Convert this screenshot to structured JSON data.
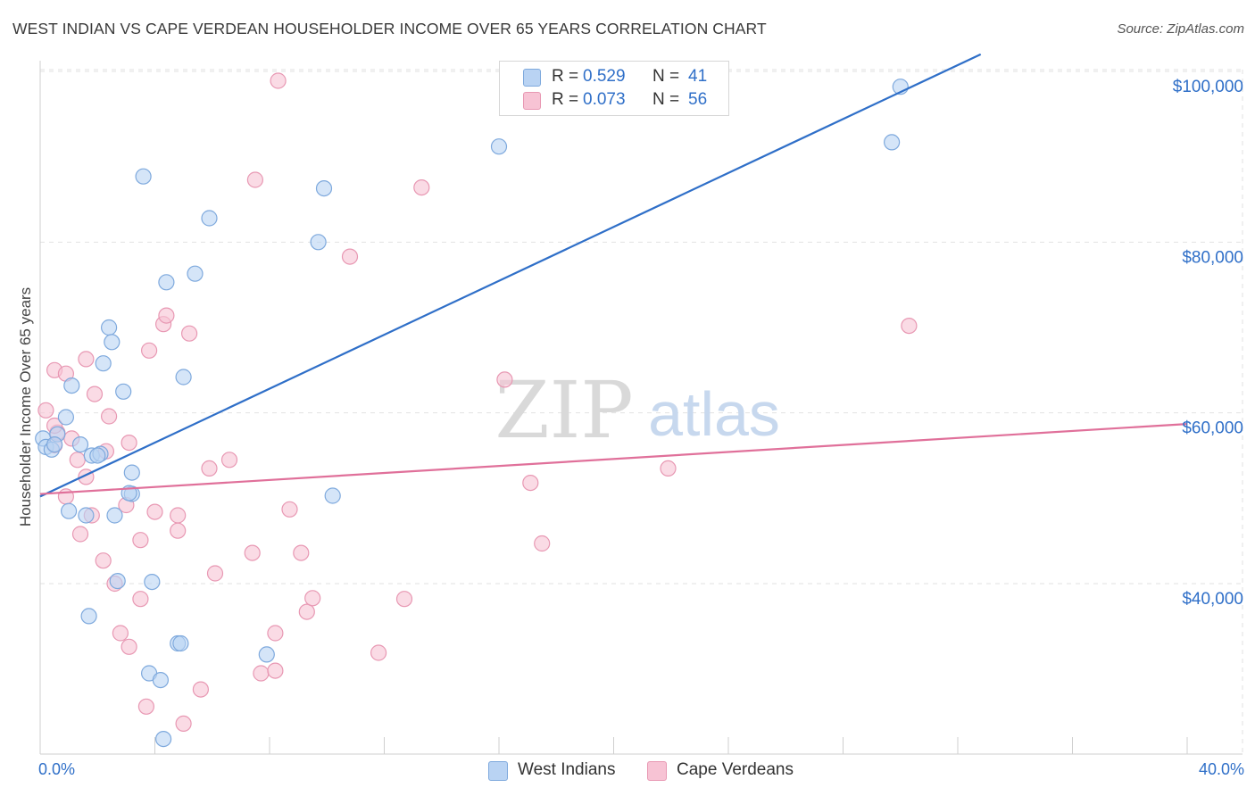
{
  "header": {
    "title": "WEST INDIAN VS CAPE VERDEAN HOUSEHOLDER INCOME OVER 65 YEARS CORRELATION CHART",
    "source": "Source: ZipAtlas.com"
  },
  "watermark": {
    "zip": "ZIP",
    "atlas": "atlas"
  },
  "legend_top": {
    "rows": [
      {
        "r_label": "R =",
        "r_value": "0.529",
        "n_label": "N =",
        "n_value": "41"
      },
      {
        "r_label": "R =",
        "r_value": "0.073",
        "n_label": "N =",
        "n_value": "56"
      }
    ]
  },
  "legend_bottom": {
    "items": [
      "West Indians",
      "Cape Verdeans"
    ]
  },
  "colors": {
    "blue_fill": "#b9d3f3",
    "blue_stroke": "#7ea9dd",
    "blue_line": "#2f6fc8",
    "pink_fill": "#f7c3d4",
    "pink_stroke": "#e898b3",
    "pink_line": "#e0709a",
    "axis_text": "#2f6fc8",
    "grid": "#e2e2e2"
  },
  "chart_data": {
    "type": "scatter",
    "title": "WEST INDIAN VS CAPE VERDEAN HOUSEHOLDER INCOME OVER 65 YEARS CORRELATION CHART",
    "xlabel": "",
    "ylabel": "Householder Income Over 65 years",
    "xlim": [
      0,
      40
    ],
    "ylim": [
      20000,
      102000
    ],
    "x_tick_labels": [
      "0.0%",
      "40.0%"
    ],
    "y_ticks": [
      {
        "value": 40000,
        "label": "$40,000"
      },
      {
        "value": 60000,
        "label": "$60,000"
      },
      {
        "value": 80000,
        "label": "$80,000"
      },
      {
        "value": 100000,
        "label": "$100,000"
      }
    ],
    "series": [
      {
        "name": "West Indians",
        "R": 0.529,
        "N": 41,
        "trend": {
          "x": [
            0,
            32.8
          ],
          "y": [
            50200,
            102000
          ]
        },
        "points": [
          [
            0.1,
            57000
          ],
          [
            0.2,
            56000
          ],
          [
            0.4,
            55700
          ],
          [
            0.6,
            57500
          ],
          [
            0.5,
            56300
          ],
          [
            0.9,
            59500
          ],
          [
            1.1,
            63200
          ],
          [
            1.4,
            56300
          ],
          [
            1.8,
            55000
          ],
          [
            2.1,
            55200
          ],
          [
            2.2,
            65800
          ],
          [
            2.4,
            70000
          ],
          [
            2.5,
            68300
          ],
          [
            2.9,
            62500
          ],
          [
            3.2,
            53000
          ],
          [
            3.2,
            50500
          ],
          [
            1.0,
            48500
          ],
          [
            1.6,
            48000
          ],
          [
            2.6,
            48000
          ],
          [
            3.6,
            87700
          ],
          [
            4.4,
            75300
          ],
          [
            5.0,
            64200
          ],
          [
            5.4,
            76300
          ],
          [
            5.9,
            82800
          ],
          [
            9.9,
            86300
          ],
          [
            9.7,
            80000
          ],
          [
            10.2,
            50300
          ],
          [
            16.0,
            91200
          ],
          [
            29.7,
            91700
          ],
          [
            30.0,
            98200
          ],
          [
            2.7,
            40300
          ],
          [
            3.9,
            40200
          ],
          [
            1.7,
            36200
          ],
          [
            4.8,
            33000
          ],
          [
            4.9,
            33000
          ],
          [
            3.8,
            29500
          ],
          [
            4.2,
            28700
          ],
          [
            7.9,
            31700
          ],
          [
            4.3,
            21800
          ],
          [
            3.1,
            50600
          ],
          [
            2.0,
            55000
          ]
        ]
      },
      {
        "name": "Cape Verdeans",
        "R": 0.073,
        "N": 56,
        "trend": {
          "x": [
            0,
            40
          ],
          "y": [
            50500,
            58700
          ]
        },
        "points": [
          [
            0.2,
            60300
          ],
          [
            0.5,
            56200
          ],
          [
            0.6,
            57700
          ],
          [
            0.5,
            58500
          ],
          [
            0.9,
            50200
          ],
          [
            0.5,
            65000
          ],
          [
            0.9,
            64600
          ],
          [
            1.1,
            57000
          ],
          [
            1.3,
            54500
          ],
          [
            1.6,
            52500
          ],
          [
            1.6,
            66300
          ],
          [
            1.9,
            62200
          ],
          [
            2.4,
            59600
          ],
          [
            2.3,
            55500
          ],
          [
            1.4,
            45800
          ],
          [
            1.8,
            48000
          ],
          [
            2.2,
            42700
          ],
          [
            2.6,
            40000
          ],
          [
            2.8,
            34200
          ],
          [
            3.0,
            49200
          ],
          [
            3.1,
            56500
          ],
          [
            3.1,
            32600
          ],
          [
            3.5,
            38200
          ],
          [
            3.5,
            45100
          ],
          [
            3.7,
            25600
          ],
          [
            3.8,
            67300
          ],
          [
            4.0,
            48400
          ],
          [
            4.3,
            70400
          ],
          [
            4.4,
            71400
          ],
          [
            4.8,
            48000
          ],
          [
            4.8,
            46200
          ],
          [
            5.0,
            23600
          ],
          [
            5.2,
            69300
          ],
          [
            5.6,
            27600
          ],
          [
            5.9,
            53500
          ],
          [
            6.1,
            41200
          ],
          [
            6.6,
            54500
          ],
          [
            7.4,
            43600
          ],
          [
            7.5,
            87300
          ],
          [
            7.7,
            29500
          ],
          [
            8.2,
            34200
          ],
          [
            8.2,
            29800
          ],
          [
            8.7,
            48700
          ],
          [
            9.1,
            43600
          ],
          [
            9.3,
            36700
          ],
          [
            9.5,
            38300
          ],
          [
            8.3,
            98900
          ],
          [
            10.8,
            78300
          ],
          [
            11.8,
            31900
          ],
          [
            12.7,
            38200
          ],
          [
            13.3,
            86400
          ],
          [
            16.2,
            63900
          ],
          [
            17.1,
            51800
          ],
          [
            17.5,
            44700
          ],
          [
            21.9,
            53500
          ],
          [
            30.3,
            70200
          ]
        ]
      }
    ]
  }
}
